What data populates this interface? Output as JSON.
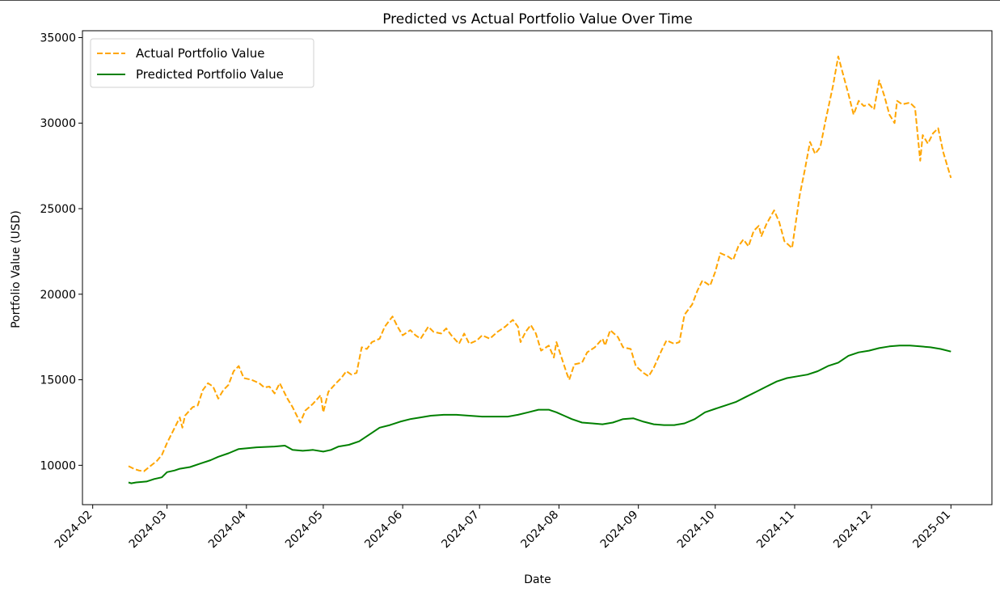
{
  "chart_data": {
    "type": "line",
    "title": "Predicted vs Actual Portfolio Value Over Time",
    "xlabel": "Date",
    "ylabel": "Portfolio Value (USD)",
    "xlim": [
      "2024-01-28",
      "2025-01-17"
    ],
    "ylim": [
      7700,
      35400
    ],
    "x_ticks": [
      "2024-02",
      "2024-03",
      "2024-04",
      "2024-05",
      "2024-06",
      "2024-07",
      "2024-08",
      "2024-09",
      "2024-10",
      "2024-11",
      "2024-12",
      "2025-01"
    ],
    "y_ticks": [
      10000,
      15000,
      20000,
      25000,
      30000,
      35000
    ],
    "legend": {
      "position": "upper-left"
    },
    "grid": false,
    "series": [
      {
        "name": "Actual Portfolio Value",
        "color": "#FFA500",
        "style": "dashed",
        "points": [
          [
            "2024-02-15",
            9950
          ],
          [
            "2024-02-17",
            9800
          ],
          [
            "2024-02-19",
            9700
          ],
          [
            "2024-02-21",
            9650
          ],
          [
            "2024-02-23",
            9900
          ],
          [
            "2024-02-26",
            10250
          ],
          [
            "2024-02-28",
            10600
          ],
          [
            "2024-03-01",
            11300
          ],
          [
            "2024-03-04",
            12200
          ],
          [
            "2024-03-06",
            12800
          ],
          [
            "2024-03-07",
            12200
          ],
          [
            "2024-03-08",
            12900
          ],
          [
            "2024-03-11",
            13400
          ],
          [
            "2024-03-13",
            13500
          ],
          [
            "2024-03-15",
            14400
          ],
          [
            "2024-03-17",
            14800
          ],
          [
            "2024-03-19",
            14600
          ],
          [
            "2024-03-21",
            13900
          ],
          [
            "2024-03-23",
            14400
          ],
          [
            "2024-03-25",
            14700
          ],
          [
            "2024-03-27",
            15500
          ],
          [
            "2024-03-29",
            15800
          ],
          [
            "2024-03-31",
            15100
          ],
          [
            "2024-04-03",
            15000
          ],
          [
            "2024-04-06",
            14800
          ],
          [
            "2024-04-08",
            14550
          ],
          [
            "2024-04-10",
            14600
          ],
          [
            "2024-04-12",
            14200
          ],
          [
            "2024-04-14",
            14800
          ],
          [
            "2024-04-17",
            13900
          ],
          [
            "2024-04-19",
            13400
          ],
          [
            "2024-04-21",
            12800
          ],
          [
            "2024-04-22",
            12500
          ],
          [
            "2024-04-24",
            13200
          ],
          [
            "2024-04-27",
            13600
          ],
          [
            "2024-04-30",
            14100
          ],
          [
            "2024-05-01",
            13100
          ],
          [
            "2024-05-03",
            14300
          ],
          [
            "2024-05-06",
            14800
          ],
          [
            "2024-05-08",
            15100
          ],
          [
            "2024-05-10",
            15500
          ],
          [
            "2024-05-12",
            15300
          ],
          [
            "2024-05-14",
            15400
          ],
          [
            "2024-05-16",
            16900
          ],
          [
            "2024-05-18",
            16800
          ],
          [
            "2024-05-20",
            17200
          ],
          [
            "2024-05-23",
            17400
          ],
          [
            "2024-05-25",
            18100
          ],
          [
            "2024-05-28",
            18700
          ],
          [
            "2024-05-30",
            18100
          ],
          [
            "2024-06-01",
            17600
          ],
          [
            "2024-06-04",
            17900
          ],
          [
            "2024-06-06",
            17600
          ],
          [
            "2024-06-08",
            17400
          ],
          [
            "2024-06-11",
            18100
          ],
          [
            "2024-06-13",
            17800
          ],
          [
            "2024-06-16",
            17700
          ],
          [
            "2024-06-18",
            18000
          ],
          [
            "2024-06-20",
            17600
          ],
          [
            "2024-06-23",
            17100
          ],
          [
            "2024-06-25",
            17700
          ],
          [
            "2024-06-27",
            17100
          ],
          [
            "2024-06-30",
            17300
          ],
          [
            "2024-07-02",
            17600
          ],
          [
            "2024-07-05",
            17400
          ],
          [
            "2024-07-08",
            17800
          ],
          [
            "2024-07-11",
            18100
          ],
          [
            "2024-07-14",
            18500
          ],
          [
            "2024-07-16",
            18100
          ],
          [
            "2024-07-17",
            17200
          ],
          [
            "2024-07-19",
            17800
          ],
          [
            "2024-07-21",
            18200
          ],
          [
            "2024-07-23",
            17700
          ],
          [
            "2024-07-25",
            16700
          ],
          [
            "2024-07-28",
            17000
          ],
          [
            "2024-07-30",
            16300
          ],
          [
            "2024-07-31",
            17200
          ],
          [
            "2024-08-02",
            16300
          ],
          [
            "2024-08-04",
            15400
          ],
          [
            "2024-08-05",
            15000
          ],
          [
            "2024-08-07",
            15900
          ],
          [
            "2024-08-10",
            16000
          ],
          [
            "2024-08-12",
            16600
          ],
          [
            "2024-08-15",
            16900
          ],
          [
            "2024-08-18",
            17400
          ],
          [
            "2024-08-19",
            17000
          ],
          [
            "2024-08-21",
            17900
          ],
          [
            "2024-08-24",
            17500
          ],
          [
            "2024-08-26",
            16900
          ],
          [
            "2024-08-29",
            16800
          ],
          [
            "2024-08-31",
            15800
          ],
          [
            "2024-09-03",
            15400
          ],
          [
            "2024-09-05",
            15200
          ],
          [
            "2024-09-07",
            15700
          ],
          [
            "2024-09-10",
            16700
          ],
          [
            "2024-09-12",
            17300
          ],
          [
            "2024-09-15",
            17100
          ],
          [
            "2024-09-17",
            17200
          ],
          [
            "2024-09-19",
            18800
          ],
          [
            "2024-09-22",
            19400
          ],
          [
            "2024-09-24",
            20200
          ],
          [
            "2024-09-26",
            20800
          ],
          [
            "2024-09-29",
            20500
          ],
          [
            "2024-10-01",
            21300
          ],
          [
            "2024-10-03",
            22400
          ],
          [
            "2024-10-06",
            22200
          ],
          [
            "2024-10-08",
            22000
          ],
          [
            "2024-10-10",
            22800
          ],
          [
            "2024-10-12",
            23200
          ],
          [
            "2024-10-14",
            22800
          ],
          [
            "2024-10-16",
            23700
          ],
          [
            "2024-10-18",
            24000
          ],
          [
            "2024-10-19",
            23400
          ],
          [
            "2024-10-21",
            24100
          ],
          [
            "2024-10-24",
            24900
          ],
          [
            "2024-10-26",
            24200
          ],
          [
            "2024-10-28",
            23100
          ],
          [
            "2024-10-31",
            22700
          ],
          [
            "2024-11-03",
            25800
          ],
          [
            "2024-11-05",
            27300
          ],
          [
            "2024-11-07",
            28900
          ],
          [
            "2024-11-09",
            28200
          ],
          [
            "2024-11-11",
            28600
          ],
          [
            "2024-11-13",
            30100
          ],
          [
            "2024-11-16",
            32200
          ],
          [
            "2024-11-18",
            33900
          ],
          [
            "2024-11-20",
            32800
          ],
          [
            "2024-11-22",
            31700
          ],
          [
            "2024-11-24",
            30500
          ],
          [
            "2024-11-26",
            31300
          ],
          [
            "2024-11-28",
            31000
          ],
          [
            "2024-11-30",
            31100
          ],
          [
            "2024-12-02",
            30800
          ],
          [
            "2024-12-04",
            32500
          ],
          [
            "2024-12-06",
            31600
          ],
          [
            "2024-12-08",
            30500
          ],
          [
            "2024-12-10",
            30000
          ],
          [
            "2024-12-11",
            31300
          ],
          [
            "2024-12-13",
            31100
          ],
          [
            "2024-12-16",
            31200
          ],
          [
            "2024-12-18",
            30900
          ],
          [
            "2024-12-20",
            27800
          ],
          [
            "2024-12-21",
            29300
          ],
          [
            "2024-12-23",
            28800
          ],
          [
            "2024-12-25",
            29400
          ],
          [
            "2024-12-27",
            29700
          ],
          [
            "2024-12-29",
            28300
          ],
          [
            "2024-12-31",
            27300
          ],
          [
            "2025-01-01",
            26800
          ]
        ]
      },
      {
        "name": "Predicted Portfolio Value",
        "color": "#008000",
        "style": "solid",
        "points": [
          [
            "2024-02-15",
            9000
          ],
          [
            "2024-02-16",
            8950
          ],
          [
            "2024-02-18",
            9000
          ],
          [
            "2024-02-22",
            9050
          ],
          [
            "2024-02-25",
            9200
          ],
          [
            "2024-02-28",
            9300
          ],
          [
            "2024-03-01",
            9600
          ],
          [
            "2024-03-04",
            9700
          ],
          [
            "2024-03-06",
            9800
          ],
          [
            "2024-03-10",
            9900
          ],
          [
            "2024-03-14",
            10100
          ],
          [
            "2024-03-18",
            10300
          ],
          [
            "2024-03-21",
            10500
          ],
          [
            "2024-03-25",
            10700
          ],
          [
            "2024-03-29",
            10950
          ],
          [
            "2024-04-05",
            11050
          ],
          [
            "2024-04-12",
            11100
          ],
          [
            "2024-04-16",
            11150
          ],
          [
            "2024-04-19",
            10900
          ],
          [
            "2024-04-23",
            10850
          ],
          [
            "2024-04-27",
            10900
          ],
          [
            "2024-05-01",
            10800
          ],
          [
            "2024-05-04",
            10900
          ],
          [
            "2024-05-07",
            11100
          ],
          [
            "2024-05-11",
            11200
          ],
          [
            "2024-05-15",
            11400
          ],
          [
            "2024-05-19",
            11800
          ],
          [
            "2024-05-23",
            12200
          ],
          [
            "2024-05-27",
            12350
          ],
          [
            "2024-05-31",
            12550
          ],
          [
            "2024-06-04",
            12700
          ],
          [
            "2024-06-08",
            12800
          ],
          [
            "2024-06-12",
            12900
          ],
          [
            "2024-06-17",
            12950
          ],
          [
            "2024-06-22",
            12950
          ],
          [
            "2024-06-27",
            12900
          ],
          [
            "2024-07-02",
            12850
          ],
          [
            "2024-07-07",
            12850
          ],
          [
            "2024-07-12",
            12850
          ],
          [
            "2024-07-16",
            12950
          ],
          [
            "2024-07-20",
            13100
          ],
          [
            "2024-07-24",
            13250
          ],
          [
            "2024-07-28",
            13250
          ],
          [
            "2024-07-31",
            13100
          ],
          [
            "2024-08-03",
            12900
          ],
          [
            "2024-08-06",
            12700
          ],
          [
            "2024-08-10",
            12500
          ],
          [
            "2024-08-14",
            12450
          ],
          [
            "2024-08-18",
            12400
          ],
          [
            "2024-08-22",
            12500
          ],
          [
            "2024-08-26",
            12700
          ],
          [
            "2024-08-30",
            12750
          ],
          [
            "2024-09-03",
            12550
          ],
          [
            "2024-09-07",
            12400
          ],
          [
            "2024-09-11",
            12350
          ],
          [
            "2024-09-15",
            12350
          ],
          [
            "2024-09-19",
            12450
          ],
          [
            "2024-09-23",
            12700
          ],
          [
            "2024-09-27",
            13100
          ],
          [
            "2024-10-01",
            13300
          ],
          [
            "2024-10-05",
            13500
          ],
          [
            "2024-10-09",
            13700
          ],
          [
            "2024-10-13",
            14000
          ],
          [
            "2024-10-17",
            14300
          ],
          [
            "2024-10-21",
            14600
          ],
          [
            "2024-10-25",
            14900
          ],
          [
            "2024-10-29",
            15100
          ],
          [
            "2024-11-02",
            15200
          ],
          [
            "2024-11-06",
            15300
          ],
          [
            "2024-11-10",
            15500
          ],
          [
            "2024-11-14",
            15800
          ],
          [
            "2024-11-18",
            16000
          ],
          [
            "2024-11-22",
            16400
          ],
          [
            "2024-11-26",
            16600
          ],
          [
            "2024-11-30",
            16700
          ],
          [
            "2024-12-04",
            16850
          ],
          [
            "2024-12-08",
            16950
          ],
          [
            "2024-12-12",
            17000
          ],
          [
            "2024-12-16",
            17000
          ],
          [
            "2024-12-20",
            16950
          ],
          [
            "2024-12-24",
            16900
          ],
          [
            "2024-12-28",
            16800
          ],
          [
            "2025-01-01",
            16650
          ]
        ]
      }
    ]
  }
}
